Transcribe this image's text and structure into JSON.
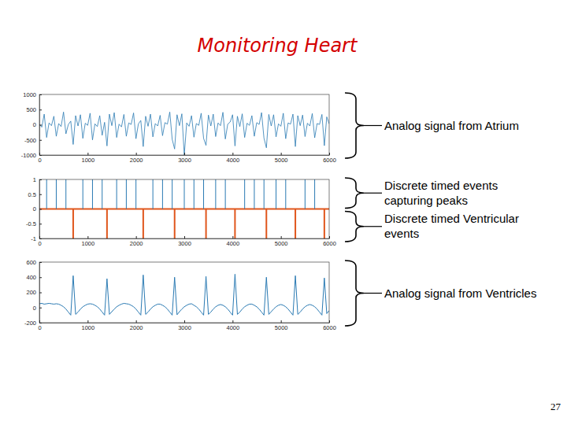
{
  "title": "Monitoring Heart",
  "page_number": 27,
  "chart_data": [
    {
      "type": "line",
      "xlim": [
        0,
        6000
      ],
      "xticks": [
        0,
        1000,
        2000,
        3000,
        4000,
        5000,
        6000
      ],
      "ylim": [
        -1000,
        1000
      ],
      "yticks": [
        -1000,
        -500,
        0,
        500,
        1000
      ],
      "x": [
        0,
        50,
        100,
        150,
        200,
        250,
        300,
        350,
        400,
        450,
        500,
        550,
        600,
        650,
        700,
        750,
        800,
        850,
        900,
        950,
        1000,
        1050,
        1100,
        1150,
        1200,
        1250,
        1300,
        1350,
        1400,
        1450,
        1500,
        1550,
        1600,
        1650,
        1700,
        1750,
        1800,
        1850,
        1900,
        1950,
        2000,
        2050,
        2100,
        2150,
        2200,
        2250,
        2300,
        2350,
        2400,
        2450,
        2500,
        2550,
        2600,
        2650,
        2700,
        2750,
        2800,
        2850,
        2900,
        2950,
        3000,
        3050,
        3100,
        3150,
        3200,
        3250,
        3300,
        3350,
        3400,
        3450,
        3500,
        3550,
        3600,
        3650,
        3700,
        3750,
        3800,
        3850,
        3900,
        3950,
        4000,
        4050,
        4100,
        4150,
        4200,
        4250,
        4300,
        4350,
        4400,
        4450,
        4500,
        4550,
        4600,
        4650,
        4700,
        4750,
        4800,
        4850,
        4900,
        4950,
        5000,
        5050,
        5100,
        5150,
        5200,
        5250,
        5300,
        5350,
        5400,
        5450,
        5500,
        5550,
        5600,
        5650,
        5700,
        5750,
        5800,
        5850,
        5900,
        5950,
        6000
      ],
      "series": [
        {
          "color": "#2a7ab3",
          "values": [
            20,
            -80,
            350,
            -420,
            60,
            -30,
            280,
            -380,
            40,
            -60,
            420,
            -300,
            10,
            120,
            -650,
            300,
            -40,
            330,
            -450,
            50,
            -20,
            380,
            -500,
            30,
            -60,
            300,
            -350,
            80,
            -700,
            350,
            -30,
            400,
            -420,
            20,
            -70,
            340,
            -380,
            60,
            10,
            390,
            -460,
            30,
            140,
            -720,
            280,
            -50,
            350,
            -400,
            40,
            -40,
            310,
            -360,
            70,
            20,
            420,
            -480,
            -800,
            330,
            -30,
            360,
            -1000,
            60,
            -50,
            300,
            -410,
            40,
            -20,
            380,
            -450,
            -680,
            320,
            -40,
            350,
            -390,
            60,
            -30,
            410,
            -470,
            20,
            90,
            330,
            -700,
            280,
            -60,
            360,
            -420,
            50,
            -20,
            300,
            -380,
            70,
            10,
            400,
            -440,
            -760,
            340,
            -40,
            330,
            -400,
            30,
            -50,
            380,
            -460,
            60,
            20,
            350,
            -720,
            300,
            -30,
            320,
            -390,
            50,
            -40,
            370,
            -430,
            40,
            10,
            340,
            -690,
            260,
            30
          ]
        }
      ],
      "annotations": [
        "Analog signal from Atrium"
      ]
    },
    {
      "type": "stem",
      "xlim": [
        0,
        6000
      ],
      "xticks": [
        0,
        1000,
        2000,
        3000,
        4000,
        5000,
        6000
      ],
      "ylim": [
        -1,
        1
      ],
      "yticks": [
        -1,
        -0.5,
        0,
        0.5,
        1
      ],
      "series": [
        {
          "color": "#2a7ab3",
          "x": [
            150,
            350,
            550,
            900,
            1100,
            1300,
            1600,
            1800,
            2000,
            2350,
            2550,
            2750,
            3000,
            3200,
            3400,
            3650,
            3850,
            4250,
            4450,
            4650,
            4900,
            5100,
            5500,
            5700
          ],
          "values": [
            1,
            1,
            1,
            1,
            1,
            1,
            1,
            1,
            1,
            1,
            1,
            1,
            1,
            1,
            1,
            1,
            1,
            1,
            1,
            1,
            1,
            1,
            1,
            1
          ]
        },
        {
          "color": "#e0561c",
          "x": [
            700,
            1400,
            2150,
            2800,
            3450,
            4050,
            4700,
            5300,
            5900
          ],
          "values": [
            -1,
            -1,
            -1,
            -1,
            -1,
            -1,
            -1,
            -1,
            -1
          ]
        }
      ],
      "annotations": [
        "Discrete timed events\ncapturing peaks",
        "Discrete timed Ventricular\nevents"
      ]
    },
    {
      "type": "line",
      "xlim": [
        0,
        6000
      ],
      "xticks": [
        0,
        1000,
        2000,
        3000,
        4000,
        5000,
        6000
      ],
      "ylim": [
        -200,
        600
      ],
      "yticks": [
        -200,
        0,
        200,
        400,
        600
      ],
      "x": [
        0,
        50,
        100,
        150,
        200,
        250,
        300,
        350,
        400,
        450,
        500,
        550,
        600,
        650,
        700,
        750,
        800,
        850,
        900,
        950,
        1000,
        1050,
        1100,
        1150,
        1200,
        1250,
        1300,
        1350,
        1400,
        1450,
        1500,
        1550,
        1600,
        1650,
        1700,
        1750,
        1800,
        1850,
        1900,
        1950,
        2000,
        2050,
        2100,
        2150,
        2200,
        2250,
        2300,
        2350,
        2400,
        2450,
        2500,
        2550,
        2600,
        2650,
        2700,
        2750,
        2800,
        2850,
        2900,
        2950,
        3000,
        3050,
        3100,
        3150,
        3200,
        3250,
        3300,
        3350,
        3400,
        3450,
        3500,
        3550,
        3600,
        3650,
        3700,
        3750,
        3800,
        3850,
        3900,
        3950,
        4000,
        4050,
        4100,
        4150,
        4200,
        4250,
        4300,
        4350,
        4400,
        4450,
        4500,
        4550,
        4600,
        4650,
        4700,
        4750,
        4800,
        4850,
        4900,
        4950,
        5000,
        5050,
        5100,
        5150,
        5200,
        5250,
        5300,
        5350,
        5400,
        5450,
        5500,
        5550,
        5600,
        5650,
        5700,
        5750,
        5800,
        5850,
        5900,
        5950,
        6000
      ],
      "series": [
        {
          "color": "#2a7ab3",
          "values": [
            50,
            55,
            45,
            50,
            55,
            50,
            45,
            50,
            45,
            30,
            10,
            -20,
            -60,
            -100,
            420,
            -90,
            -60,
            -20,
            10,
            30,
            45,
            50,
            45,
            30,
            10,
            -20,
            -60,
            -100,
            380,
            -90,
            -55,
            -20,
            10,
            30,
            45,
            55,
            50,
            45,
            30,
            10,
            -20,
            -60,
            -100,
            430,
            -90,
            -60,
            -20,
            10,
            30,
            45,
            45,
            30,
            10,
            -20,
            -60,
            -100,
            400,
            -95,
            -55,
            -20,
            10,
            30,
            45,
            50,
            30,
            10,
            -20,
            -60,
            -100,
            410,
            -90,
            -60,
            -20,
            10,
            30,
            40,
            30,
            10,
            -20,
            -60,
            -100,
            440,
            -90,
            -60,
            -20,
            10,
            30,
            45,
            45,
            30,
            10,
            -20,
            -60,
            -100,
            400,
            -90,
            -55,
            -20,
            10,
            30,
            40,
            30,
            10,
            -20,
            -60,
            -100,
            420,
            -90,
            -60,
            -20,
            10,
            30,
            40,
            30,
            10,
            -20,
            -60,
            -100,
            390,
            -80,
            -40
          ]
        }
      ],
      "annotations": [
        "Analog signal from Ventricles"
      ]
    }
  ]
}
